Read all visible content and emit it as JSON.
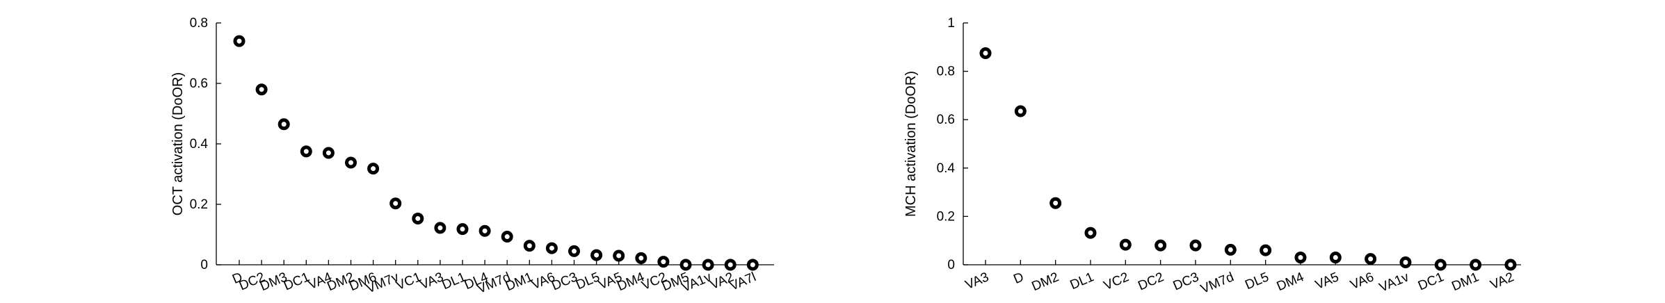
{
  "chart_data": [
    {
      "type": "scatter",
      "ylabel": "OCT activation (DoOR)",
      "xlabel": "",
      "ylim": [
        0,
        0.8
      ],
      "yticks": [
        "0",
        "0.2",
        "0.4",
        "0.6",
        "0.8"
      ],
      "ytick_values": [
        0,
        0.2,
        0.4,
        0.6,
        0.8
      ],
      "categories": [
        "D",
        "DC2",
        "DM3",
        "DC1",
        "VA4",
        "DM2",
        "DM6",
        "VM7v",
        "VC1",
        "VA3",
        "DL1",
        "DL4",
        "VM7d",
        "DM1",
        "VA6",
        "DC3",
        "DL5",
        "VA5",
        "DM4",
        "VC2",
        "DM5",
        "VA1v",
        "VA2",
        "VA7l"
      ],
      "values": [
        0.74,
        0.58,
        0.465,
        0.375,
        0.37,
        0.338,
        0.318,
        0.203,
        0.153,
        0.122,
        0.118,
        0.112,
        0.093,
        0.063,
        0.055,
        0.045,
        0.032,
        0.03,
        0.022,
        0.01,
        0.0,
        0.0,
        0.0,
        0.0
      ]
    },
    {
      "type": "scatter",
      "ylabel": "MCH activation (DoOR)",
      "xlabel": "",
      "ylim": [
        0,
        1
      ],
      "yticks": [
        "0",
        "0.2",
        "0.4",
        "0.6",
        "0.8",
        "1"
      ],
      "ytick_values": [
        0,
        0.2,
        0.4,
        0.6,
        0.8,
        1
      ],
      "categories": [
        "VA3",
        "D",
        "DM2",
        "DL1",
        "VC2",
        "DC2",
        "DC3",
        "VM7d",
        "DL5",
        "DM4",
        "VA5",
        "VA6",
        "VA1v",
        "DC1",
        "DM1",
        "VA2"
      ],
      "values": [
        0.875,
        0.635,
        0.255,
        0.132,
        0.083,
        0.08,
        0.08,
        0.062,
        0.06,
        0.03,
        0.03,
        0.024,
        0.01,
        0.0,
        0.0,
        0.0
      ]
    }
  ]
}
